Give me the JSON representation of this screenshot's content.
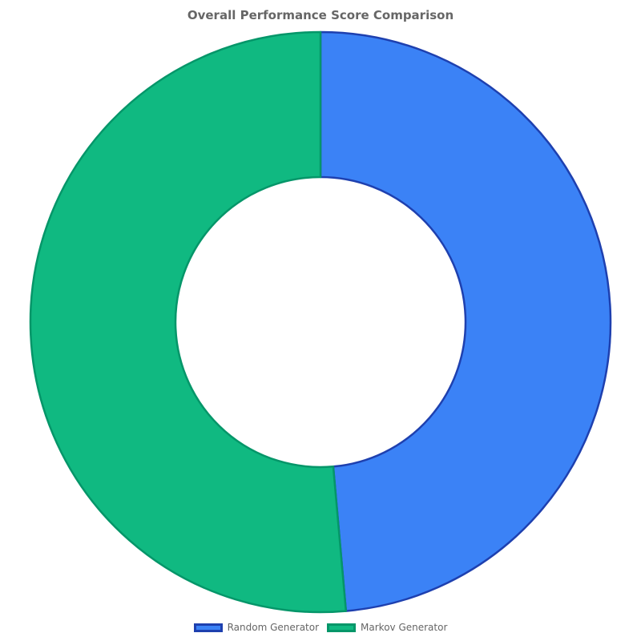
{
  "chart_data": {
    "type": "pie",
    "title": "Overall Performance Score Comparison",
    "donut": true,
    "start_angle": "top",
    "direction": "clockwise",
    "legend_position": "bottom",
    "slices": [
      {
        "label": "Random Generator",
        "value": 48.6,
        "color": "#3b82f6",
        "border_color": "#1e40af"
      },
      {
        "label": "Markov Generator",
        "value": 51.4,
        "color": "#10b981",
        "border_color": "#059669"
      }
    ]
  }
}
